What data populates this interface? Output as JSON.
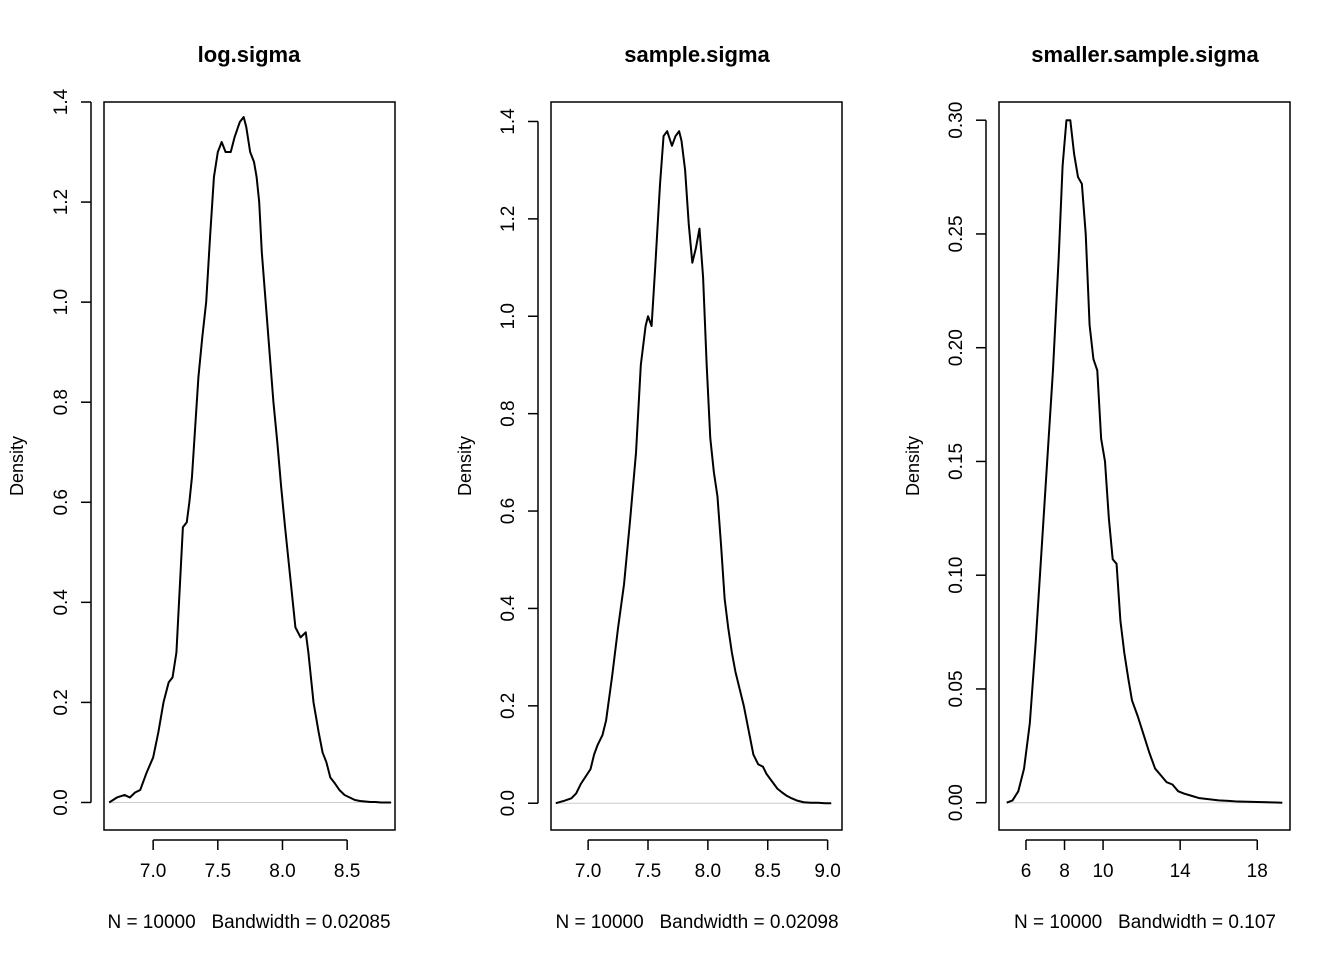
{
  "colors": {
    "line": "#000000",
    "baseline": "#cccccc",
    "frame": "#000000",
    "background": "#ffffff"
  },
  "chart_data": [
    {
      "type": "line",
      "title": "log.sigma",
      "ylabel": "Density",
      "xlabel": "N = 10000   Bandwidth = 0.02085",
      "xlim": [
        6.62,
        8.87
      ],
      "ylim": [
        -0.055,
        1.4
      ],
      "xticks": [
        "7.0",
        "7.5",
        "8.0",
        "8.5"
      ],
      "yticks": [
        "0.0",
        "0.2",
        "0.4",
        "0.6",
        "0.8",
        "1.0",
        "1.2",
        "1.4"
      ],
      "series": [
        {
          "x": [
            6.66,
            6.72,
            6.78,
            6.82,
            6.86,
            6.9,
            6.95,
            7.0,
            7.04,
            7.08,
            7.12,
            7.15,
            7.18,
            7.2,
            7.23,
            7.26,
            7.28,
            7.3,
            7.32,
            7.35,
            7.38,
            7.41,
            7.44,
            7.47,
            7.5,
            7.53,
            7.56,
            7.6,
            7.63,
            7.67,
            7.7,
            7.72,
            7.75,
            7.78,
            7.8,
            7.82,
            7.84,
            7.87,
            7.9,
            7.93,
            7.96,
            7.99,
            8.02,
            8.06,
            8.1,
            8.14,
            8.18,
            8.2,
            8.22,
            8.24,
            8.26,
            8.28,
            8.31,
            8.34,
            8.37,
            8.4,
            8.44,
            8.48,
            8.52,
            8.56,
            8.6,
            8.64,
            8.68,
            8.72,
            8.76,
            8.8,
            8.84
          ],
          "y": [
            0.0,
            0.01,
            0.015,
            0.01,
            0.02,
            0.025,
            0.06,
            0.09,
            0.14,
            0.2,
            0.24,
            0.25,
            0.3,
            0.4,
            0.55,
            0.56,
            0.6,
            0.65,
            0.73,
            0.85,
            0.93,
            1.0,
            1.13,
            1.25,
            1.3,
            1.32,
            1.3,
            1.3,
            1.33,
            1.36,
            1.37,
            1.35,
            1.3,
            1.28,
            1.25,
            1.2,
            1.1,
            1.0,
            0.9,
            0.8,
            0.72,
            0.63,
            0.55,
            0.45,
            0.35,
            0.33,
            0.34,
            0.3,
            0.25,
            0.2,
            0.17,
            0.14,
            0.1,
            0.08,
            0.05,
            0.04,
            0.025,
            0.015,
            0.01,
            0.005,
            0.003,
            0.002,
            0.001,
            0.001,
            0.0,
            0.0,
            0.0
          ]
        }
      ]
    },
    {
      "type": "line",
      "title": "sample.sigma",
      "ylabel": "Density",
      "xlabel": "N = 10000   Bandwidth = 0.02098",
      "xlim": [
        6.69,
        9.12
      ],
      "ylim": [
        -0.055,
        1.44
      ],
      "xticks": [
        "7.0",
        "7.5",
        "8.0",
        "8.5",
        "9.0"
      ],
      "yticks": [
        "0.0",
        "0.2",
        "0.4",
        "0.6",
        "0.8",
        "1.0",
        "1.2",
        "1.4"
      ],
      "series": [
        {
          "x": [
            6.73,
            6.8,
            6.86,
            6.9,
            6.94,
            6.98,
            7.02,
            7.05,
            7.08,
            7.12,
            7.15,
            7.2,
            7.25,
            7.3,
            7.35,
            7.4,
            7.44,
            7.48,
            7.5,
            7.53,
            7.56,
            7.6,
            7.63,
            7.66,
            7.7,
            7.73,
            7.76,
            7.78,
            7.81,
            7.84,
            7.87,
            7.9,
            7.93,
            7.96,
            7.99,
            8.02,
            8.05,
            8.08,
            8.11,
            8.14,
            8.17,
            8.2,
            8.23,
            8.26,
            8.3,
            8.34,
            8.38,
            8.42,
            8.46,
            8.49,
            8.52,
            8.55,
            8.58,
            8.62,
            8.66,
            8.7,
            8.75,
            8.8,
            8.86,
            8.92,
            8.98,
            9.03
          ],
          "y": [
            0.0,
            0.005,
            0.01,
            0.02,
            0.04,
            0.055,
            0.07,
            0.1,
            0.12,
            0.14,
            0.17,
            0.26,
            0.36,
            0.45,
            0.58,
            0.72,
            0.9,
            0.98,
            1.0,
            0.98,
            1.1,
            1.27,
            1.37,
            1.38,
            1.35,
            1.37,
            1.38,
            1.36,
            1.3,
            1.19,
            1.11,
            1.14,
            1.18,
            1.08,
            0.9,
            0.75,
            0.68,
            0.63,
            0.53,
            0.42,
            0.36,
            0.31,
            0.27,
            0.24,
            0.2,
            0.15,
            0.1,
            0.08,
            0.075,
            0.06,
            0.05,
            0.04,
            0.03,
            0.022,
            0.015,
            0.01,
            0.005,
            0.002,
            0.001,
            0.001,
            0.0,
            0.0
          ]
        }
      ]
    },
    {
      "type": "line",
      "title": "smaller.sample.sigma",
      "ylabel": "Density",
      "xlabel": "N = 10000   Bandwidth = 0.107",
      "xlim": [
        4.6,
        19.7
      ],
      "ylim": [
        -0.012,
        0.308
      ],
      "xticks": [
        "6",
        "8",
        "10",
        "14",
        "18"
      ],
      "xtick_values": [
        6,
        8,
        10,
        14,
        18
      ],
      "yticks": [
        "0.00",
        "0.05",
        "0.10",
        "0.15",
        "0.20",
        "0.25",
        "0.30"
      ],
      "series": [
        {
          "x": [
            5.0,
            5.3,
            5.6,
            5.9,
            6.2,
            6.5,
            6.8,
            7.1,
            7.4,
            7.7,
            7.9,
            8.1,
            8.3,
            8.5,
            8.7,
            8.9,
            9.1,
            9.3,
            9.5,
            9.7,
            9.9,
            10.1,
            10.3,
            10.5,
            10.7,
            10.9,
            11.1,
            11.3,
            11.5,
            11.8,
            12.1,
            12.4,
            12.7,
            13.0,
            13.3,
            13.6,
            13.9,
            14.2,
            14.6,
            15.0,
            15.5,
            16.0,
            16.5,
            17.0,
            17.5,
            18.0,
            18.5,
            19.0,
            19.3
          ],
          "y": [
            0.0,
            0.001,
            0.005,
            0.015,
            0.035,
            0.07,
            0.11,
            0.15,
            0.19,
            0.24,
            0.28,
            0.3,
            0.3,
            0.285,
            0.275,
            0.272,
            0.25,
            0.21,
            0.195,
            0.19,
            0.16,
            0.15,
            0.125,
            0.107,
            0.105,
            0.08,
            0.066,
            0.055,
            0.045,
            0.038,
            0.03,
            0.022,
            0.015,
            0.012,
            0.009,
            0.008,
            0.005,
            0.004,
            0.003,
            0.002,
            0.0015,
            0.001,
            0.0008,
            0.0005,
            0.0004,
            0.0003,
            0.0002,
            0.0001,
            0.0
          ]
        }
      ]
    }
  ]
}
